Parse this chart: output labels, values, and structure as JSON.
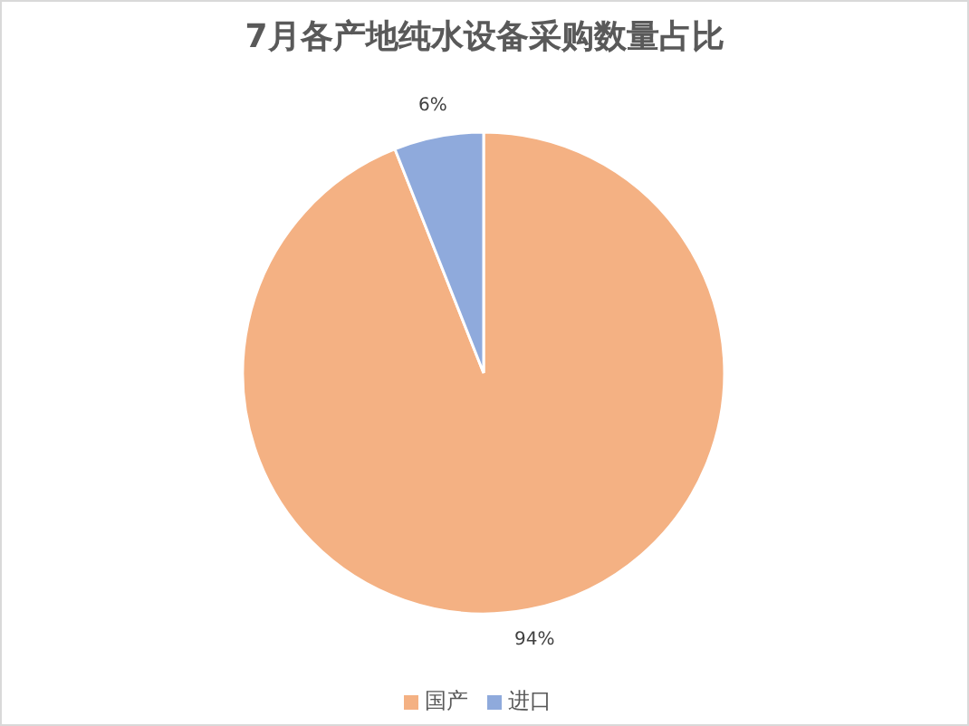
{
  "chart_data": {
    "type": "pie",
    "title": "7月各产地纯水设备采购数量占比",
    "categories": [
      "国产",
      "进口"
    ],
    "values": [
      94,
      6
    ],
    "colors": [
      "#f4b183",
      "#8faadc"
    ],
    "value_labels": [
      "94%",
      "6%"
    ],
    "legend": "bottom"
  }
}
